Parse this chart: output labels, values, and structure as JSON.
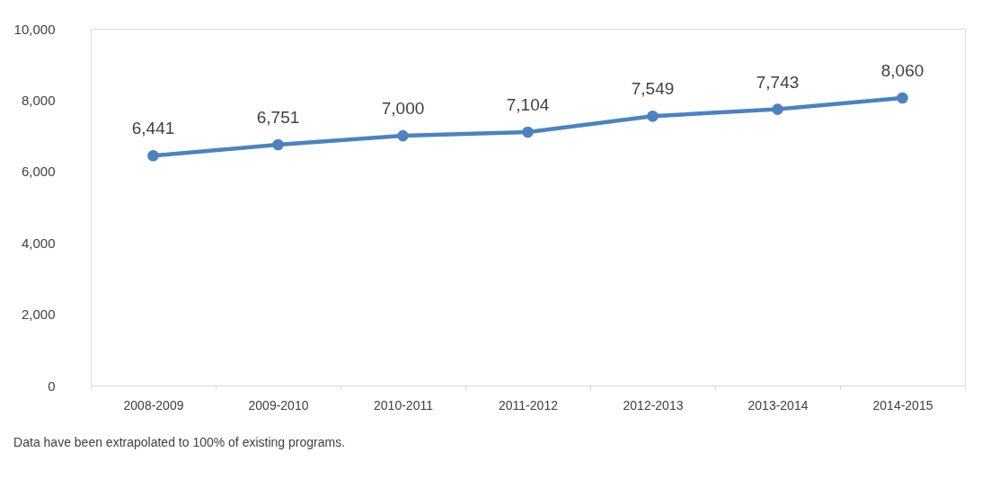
{
  "chart_data": {
    "type": "line",
    "categories": [
      "2008-2009",
      "2009-2010",
      "2010-2011",
      "2011-2012",
      "2012-2013",
      "2013-2014",
      "2014-2015"
    ],
    "series": [
      {
        "color": "#4f81bd",
        "values": [
          6441,
          6751,
          7000,
          7104,
          7549,
          7743,
          8060
        ],
        "value_labels": [
          "6,441",
          "6,751",
          "7,000",
          "7,104",
          "7,549",
          "7,743",
          "8,060"
        ]
      }
    ],
    "ylim": [
      0,
      10000
    ],
    "yticks": [
      0,
      {
        "value": 2000,
        "label": "2,000"
      },
      {
        "value": 4000,
        "label": "4,000"
      },
      {
        "value": 6000,
        "label": "6,000"
      },
      {
        "value": 8000,
        "label": "8,000"
      },
      {
        "value": 10000,
        "label": "10,000"
      }
    ],
    "grid": false,
    "legend": false,
    "marker": "circle",
    "line_style": "solid",
    "annotations": [
      "Data have been extrapolated to 100% of existing programs."
    ]
  }
}
